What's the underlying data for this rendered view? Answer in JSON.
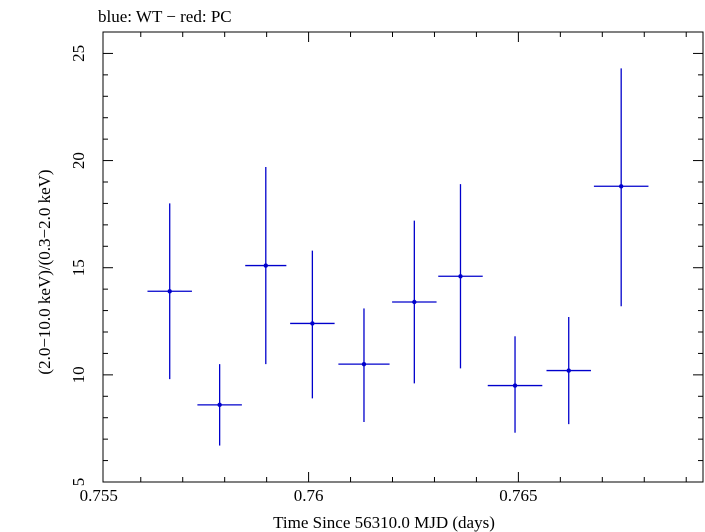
{
  "chart_data": {
    "type": "scatter",
    "title": "blue: WT − red: PC",
    "xlabel": "Time Since 56310.0 MJD (days)",
    "ylabel": "(2.0−10.0 keV)/(0.3−2.0 keV)",
    "xlim": [
      0.7551,
      0.7694
    ],
    "ylim": [
      5,
      26
    ],
    "xticks": [
      0.755,
      0.76,
      0.765
    ],
    "xtick_labels": [
      "0.755",
      "0.76",
      "0.765"
    ],
    "yticks": [
      5,
      10,
      15,
      20,
      25
    ],
    "ytick_labels": [
      "5",
      "10",
      "15",
      "20",
      "25"
    ],
    "grid": false,
    "series": [
      {
        "name": "WT",
        "color": "#0000cc",
        "points": [
          {
            "x": 0.75669,
            "y": 13.9,
            "xerr": 0.00053,
            "ylo": 9.8,
            "yhi": 18.0
          },
          {
            "x": 0.75788,
            "y": 8.6,
            "xerr": 0.00053,
            "ylo": 6.7,
            "yhi": 10.5
          },
          {
            "x": 0.75898,
            "y": 15.1,
            "xerr": 0.00049,
            "ylo": 10.5,
            "yhi": 19.7
          },
          {
            "x": 0.76009,
            "y": 12.4,
            "xerr": 0.00053,
            "ylo": 8.9,
            "yhi": 15.8
          },
          {
            "x": 0.76132,
            "y": 10.5,
            "xerr": 0.00061,
            "ylo": 7.8,
            "yhi": 13.1
          },
          {
            "x": 0.76252,
            "y": 13.4,
            "xerr": 0.00053,
            "ylo": 9.6,
            "yhi": 17.2
          },
          {
            "x": 0.76362,
            "y": 14.6,
            "xerr": 0.00053,
            "ylo": 10.3,
            "yhi": 18.9
          },
          {
            "x": 0.76492,
            "y": 9.5,
            "xerr": 0.00065,
            "ylo": 7.3,
            "yhi": 11.8
          },
          {
            "x": 0.7662,
            "y": 10.2,
            "xerr": 0.00053,
            "ylo": 7.7,
            "yhi": 12.7
          },
          {
            "x": 0.76745,
            "y": 18.8,
            "xerr": 0.00065,
            "ylo": 13.2,
            "yhi": 24.3
          }
        ]
      }
    ]
  }
}
